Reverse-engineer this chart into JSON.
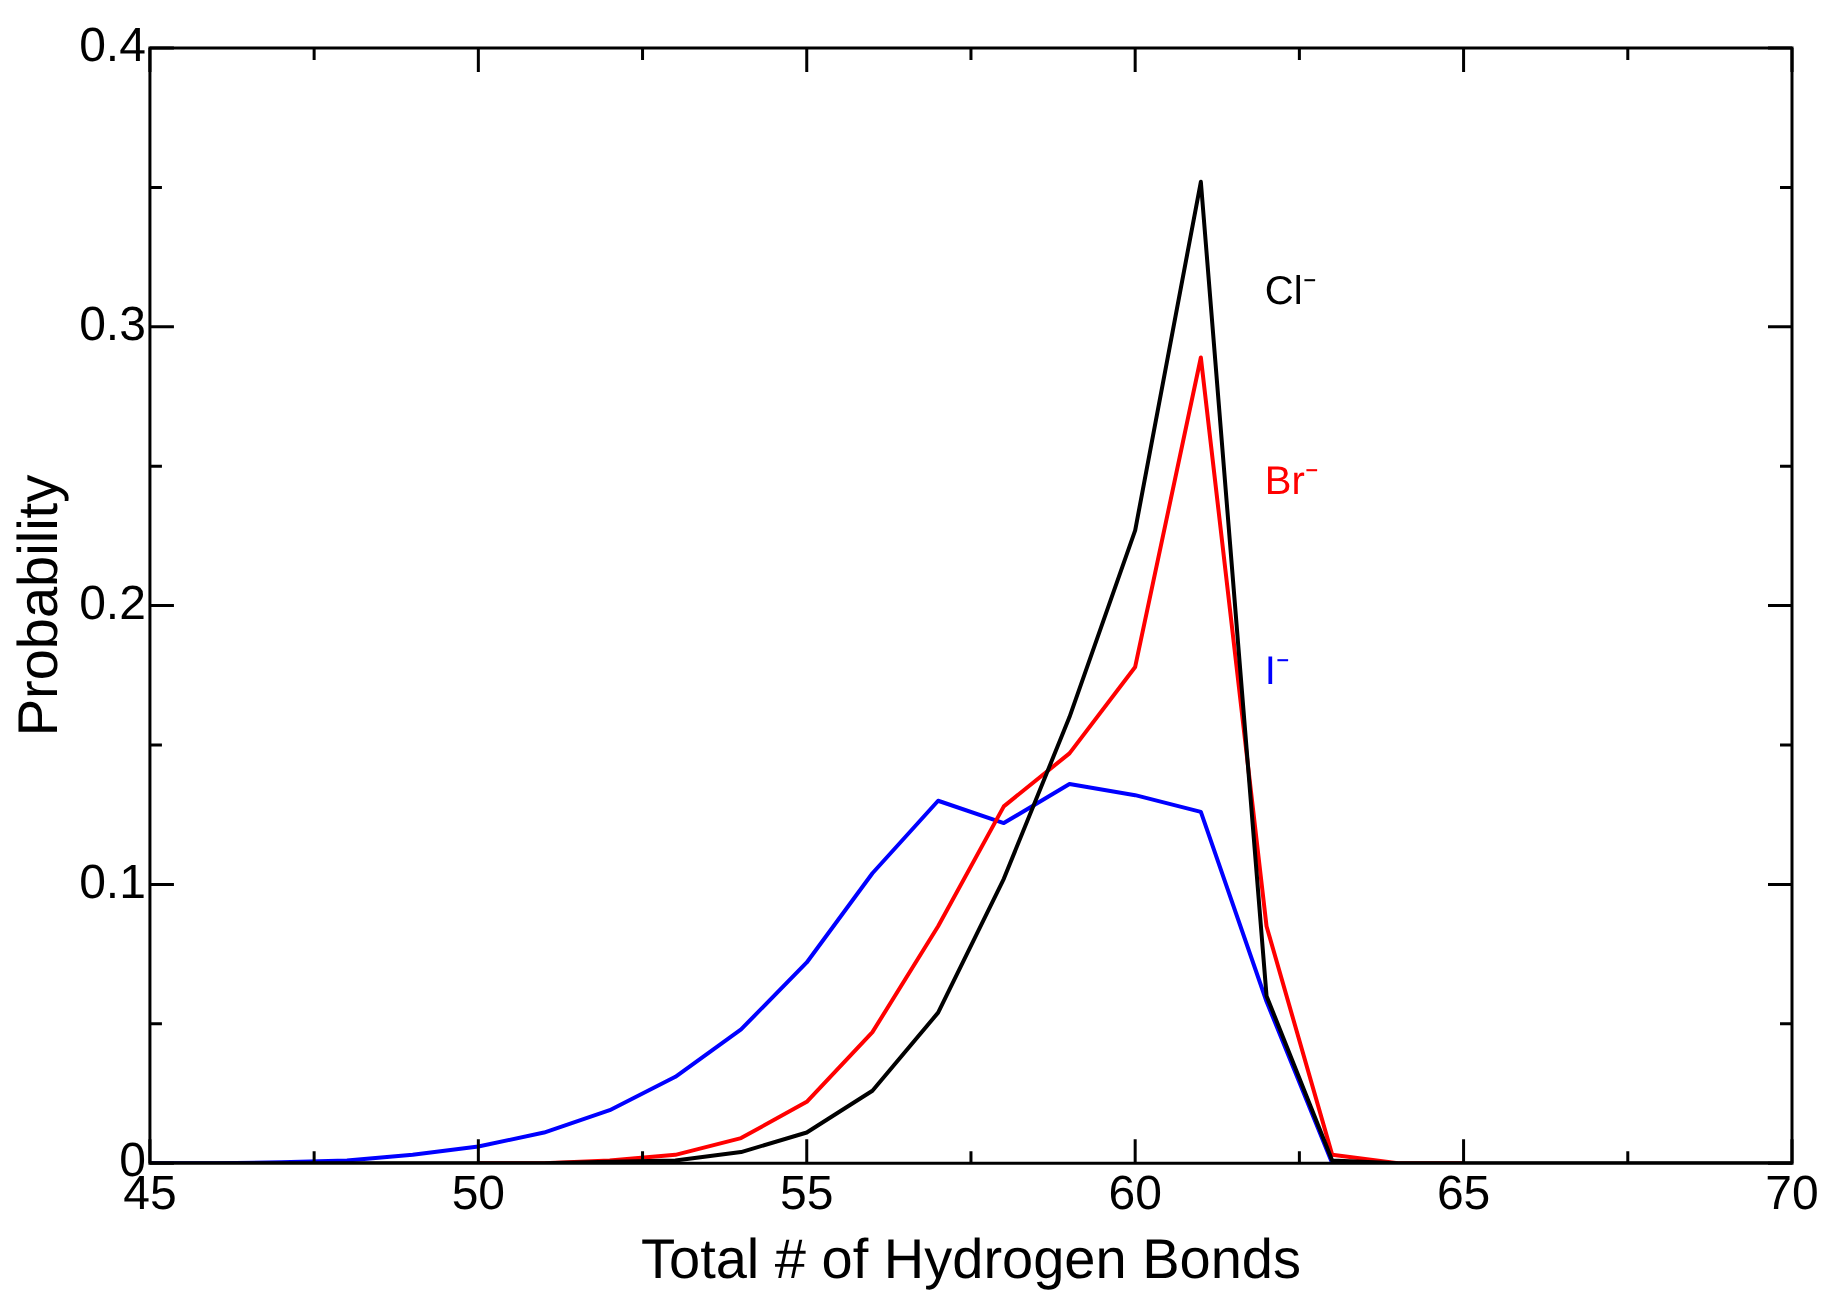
{
  "chart_data": {
    "type": "line",
    "xlabel": "Total # of Hydrogen Bonds",
    "ylabel": "Probability",
    "x": [
      45,
      46,
      47,
      48,
      49,
      50,
      51,
      52,
      53,
      54,
      55,
      56,
      57,
      58,
      59,
      60,
      61,
      62,
      63,
      64,
      65,
      66,
      67,
      68,
      69,
      70
    ],
    "series": [
      {
        "name": "Cl⁻",
        "color": "#000000",
        "values": [
          0,
          0,
          0,
          0,
          0,
          0,
          0,
          0.0005,
          0.001,
          0.004,
          0.011,
          0.026,
          0.054,
          0.102,
          0.16,
          0.227,
          0.352,
          0.06,
          0.001,
          0,
          0,
          0,
          0,
          0,
          0,
          0
        ]
      },
      {
        "name": "Br⁻",
        "color": "#ff0000",
        "values": [
          null,
          null,
          null,
          null,
          null,
          0,
          0,
          0.001,
          0.003,
          0.009,
          0.022,
          0.047,
          0.085,
          0.128,
          0.147,
          0.178,
          0.289,
          0.085,
          0.003,
          0,
          0,
          null,
          null,
          null,
          null,
          null
        ]
      },
      {
        "name": "I⁻",
        "color": "#0000ff",
        "values": [
          0,
          0,
          0.0003,
          0.001,
          0.003,
          0.006,
          0.011,
          0.019,
          0.031,
          0.048,
          0.072,
          0.104,
          0.13,
          0.122,
          0.136,
          0.132,
          0.126,
          0.058,
          0,
          0,
          null,
          null,
          null,
          null,
          null,
          null
        ]
      }
    ],
    "xlim": [
      45,
      70
    ],
    "xticks": [
      45,
      {
        "value": 47.5,
        "label": null
      },
      50,
      {
        "value": 52.5,
        "label": null
      },
      55,
      {
        "value": 57.5,
        "label": null
      },
      60,
      {
        "value": 62.5,
        "label": null
      },
      65,
      {
        "value": 67.5,
        "label": null
      },
      70
    ],
    "ylim": [
      0,
      0.4
    ],
    "yticks": [
      0,
      {
        "value": 0.05,
        "label": null
      },
      0.1,
      {
        "value": 0.15,
        "label": null
      },
      0.2,
      {
        "value": 0.25,
        "label": null
      },
      0.3,
      {
        "value": 0.35,
        "label": null
      },
      0.4
    ],
    "grid": false,
    "legend": false,
    "marker": "none",
    "line_style": "solid"
  }
}
